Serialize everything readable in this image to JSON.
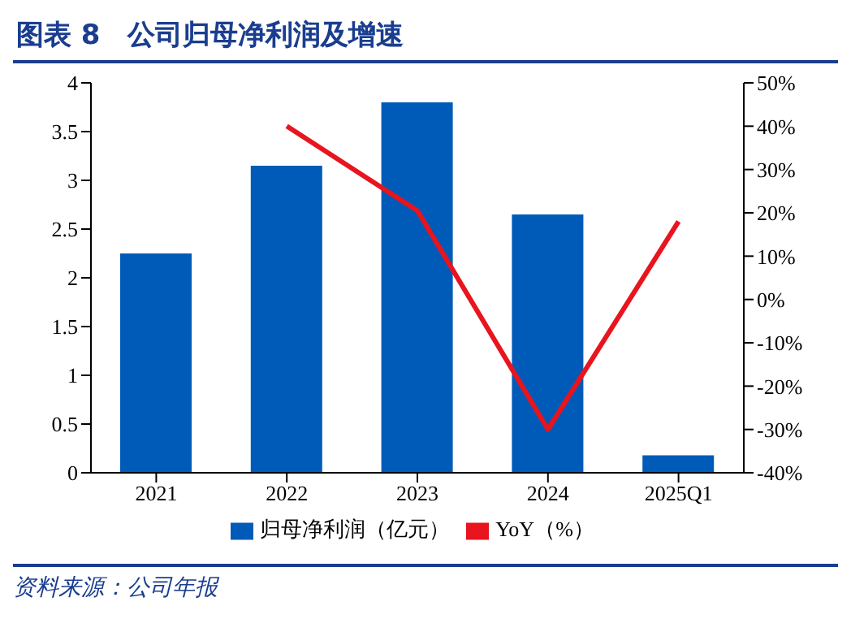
{
  "chart_data": {
    "type": "bar",
    "title": "图表 8　公司归母净利润及增速",
    "categories": [
      "2021",
      "2022",
      "2023",
      "2024",
      "2025Q1"
    ],
    "series": [
      {
        "name": "归母净利润（亿元）",
        "color": "#005bb8",
        "values": [
          2.25,
          3.15,
          3.8,
          2.65,
          0.18
        ]
      },
      {
        "name": "YoY（%）",
        "type": "line",
        "axis": "y2",
        "color": "#e8141e",
        "values": [
          null,
          40,
          20.5,
          -30,
          18
        ]
      }
    ],
    "ylim": [
      0,
      4
    ],
    "yticks": [
      0,
      0.5,
      1,
      1.5,
      2,
      2.5,
      3,
      3.5,
      4
    ],
    "y2lim": [
      -40,
      50
    ],
    "y2ticks": [
      {
        "value": -40,
        "label": "-40%"
      },
      {
        "value": -30,
        "label": "-30%"
      },
      {
        "value": -20,
        "label": "-20%"
      },
      {
        "value": -10,
        "label": "-10%"
      },
      {
        "value": 0,
        "label": "0%"
      },
      {
        "value": 10,
        "label": "10%"
      },
      {
        "value": 20,
        "label": "20%"
      },
      {
        "value": 30,
        "label": "30%"
      },
      {
        "value": 40,
        "label": "40%"
      },
      {
        "value": 50,
        "label": "50%"
      }
    ],
    "legend": "bottom",
    "marker": "none",
    "annotations": [
      "资料来源：公司年报"
    ]
  }
}
